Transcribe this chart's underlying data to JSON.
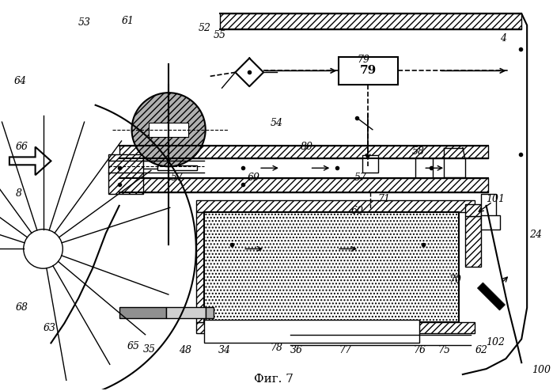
{
  "title": "Фиг. 7",
  "bg_color": "#ffffff",
  "label_color": "#000000"
}
